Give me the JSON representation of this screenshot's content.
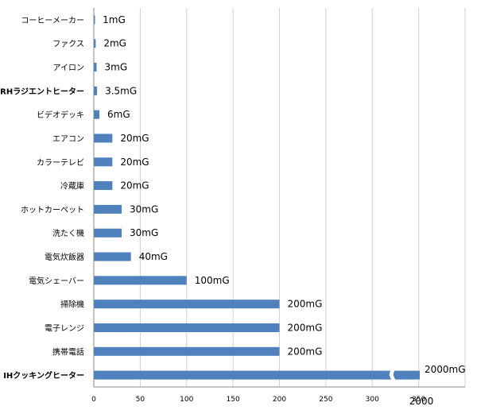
{
  "chart_data": {
    "type": "bar",
    "orientation": "horizontal",
    "categories": [
      "コーヒーメーカー",
      "ファクス",
      "アイロン",
      "RHラジエントヒーター",
      "ビデオデッキ",
      "エアコン",
      "カラーテレビ",
      "冷蔵庫",
      "ホットカーペット",
      "洗たく機",
      "電気炊飯器",
      "電気シェーバー",
      "掃除機",
      "電子レンジ",
      "携帯電話",
      "IHクッキングヒーター"
    ],
    "values": [
      1,
      2,
      3,
      3.5,
      6,
      20,
      20,
      20,
      30,
      30,
      40,
      100,
      200,
      200,
      200,
      2000
    ],
    "data_labels": [
      "1mG",
      "2mG",
      "3mG",
      "3.5mG",
      "6mG",
      "20mG",
      "20mG",
      "20mG",
      "30mG",
      "30mG",
      "40mG",
      "100mG",
      "200mG",
      "200mG",
      "200mG",
      "2000mG"
    ],
    "highlight": {
      "RHラジエントヒーター": "#1f1fd6",
      "IHクッキングヒーター": "#e8174f"
    },
    "bar_color": "#4f81bd",
    "xticks": [
      0,
      50,
      100,
      150,
      200,
      250,
      300,
      350
    ],
    "xlim": [
      0,
      400
    ],
    "axis_break": {
      "value": 2000,
      "label": "2000",
      "break_at": 320
    },
    "grid": true,
    "legend": "none"
  }
}
